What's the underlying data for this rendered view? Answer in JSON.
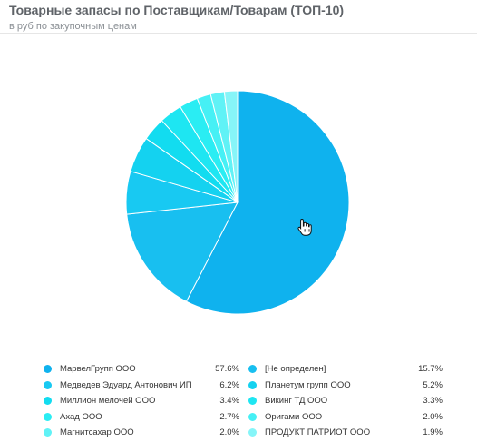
{
  "header": {
    "title": "Товарные запасы по Поставщикам/Товарам (ТОП-10)",
    "subtitle": "в руб по закупочным ценам"
  },
  "chart_data": {
    "type": "pie",
    "title": "Товарные запасы по Поставщикам/Товарам (ТОП-10)",
    "subtitle": "в руб по закупочным ценам",
    "legend_position": "bottom",
    "slices": [
      {
        "label": "МарвелГрупп ООО",
        "value": 57.6,
        "display": "57.6%",
        "color": "#0fb2ee"
      },
      {
        "label": "[Не определен]",
        "value": 15.7,
        "display": "15.7%",
        "color": "#18bff0"
      },
      {
        "label": "Медведев Эдуард Антонович ИП",
        "value": 6.2,
        "display": "6.2%",
        "color": "#18c9f2"
      },
      {
        "label": "Планетум групп ООО",
        "value": 5.2,
        "display": "5.2%",
        "color": "#14d2f0"
      },
      {
        "label": "Миллион мелочей ООО",
        "value": 3.4,
        "display": "3.4%",
        "color": "#12dcf0"
      },
      {
        "label": "Викинг ТД ООО",
        "value": 3.3,
        "display": "3.3%",
        "color": "#1ee6f2"
      },
      {
        "label": "Ахад ООО",
        "value": 2.7,
        "display": "2.7%",
        "color": "#2aedf3"
      },
      {
        "label": "Оригами ООО",
        "value": 2.0,
        "display": "2.0%",
        "color": "#46f0f5"
      },
      {
        "label": "Магнитсахар ООО",
        "value": 2.0,
        "display": "2.0%",
        "color": "#60f2f6"
      },
      {
        "label": "ПРОДУКТ ПАТРИОТ ООО",
        "value": 1.9,
        "display": "1.9%",
        "color": "#86f5f8"
      }
    ]
  },
  "icons": {
    "cursor": "hand-pointer-cursor-icon"
  }
}
